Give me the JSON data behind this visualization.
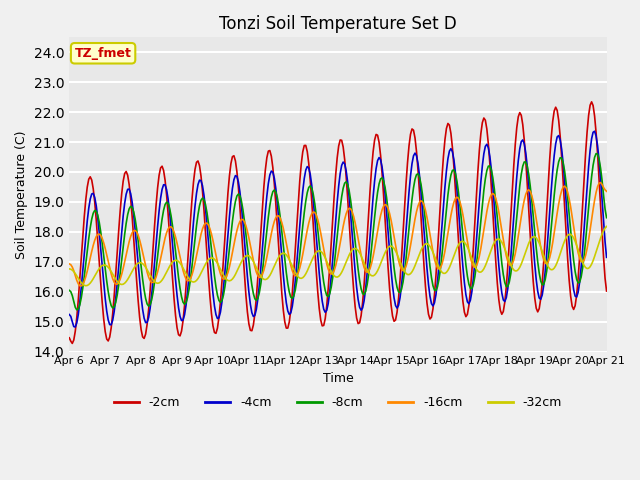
{
  "title": "Tonzi Soil Temperature Set D",
  "xlabel": "Time",
  "ylabel": "Soil Temperature (C)",
  "ylim": [
    14.0,
    24.5
  ],
  "yticks": [
    14.0,
    15.0,
    16.0,
    17.0,
    18.0,
    19.0,
    20.0,
    21.0,
    22.0,
    23.0,
    24.0
  ],
  "annotation_label": "TZ_fmet",
  "annotation_color": "#cc0000",
  "annotation_bg": "#ffffcc",
  "annotation_border": "#cccc00",
  "series_colors": {
    "-2cm": "#cc0000",
    "-4cm": "#0000cc",
    "-8cm": "#009900",
    "-16cm": "#ff8800",
    "-32cm": "#cccc00"
  },
  "bg_color": "#e8e8e8",
  "grid_color": "#ffffff",
  "legend_line_colors": [
    "#cc0000",
    "#0000cc",
    "#009900",
    "#ff8800",
    "#cccc00"
  ],
  "legend_labels": [
    "-2cm",
    "-4cm",
    "-8cm",
    "-16cm",
    "-32cm"
  ],
  "x_tick_labels": [
    "Apr 6",
    "Apr 7",
    "Apr 8",
    "Apr 9",
    "Apr 10",
    "Apr 11",
    "Apr 12",
    "Apr 13",
    "Apr 14",
    "Apr 15",
    "Apr 16",
    "Apr 17",
    "Apr 18",
    "Apr 19",
    "Apr 20",
    "Apr 21"
  ],
  "num_points": 360,
  "start_day": 6,
  "end_day": 21
}
